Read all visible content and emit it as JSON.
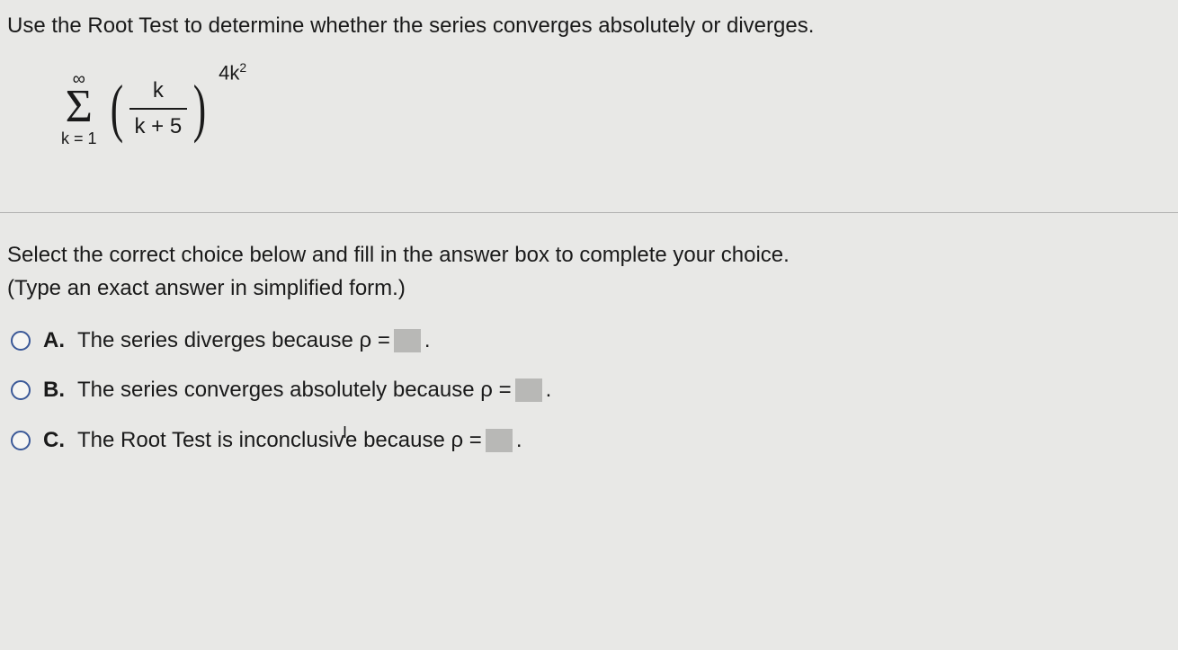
{
  "question": {
    "prompt": "Use the Root Test to determine whether the series converges absolutely or diverges.",
    "formula": {
      "sigma_upper": "∞",
      "sigma_lower": "k = 1",
      "fraction_numerator": "k",
      "fraction_denominator": "k + 5",
      "exponent_base": "4k",
      "exponent_power": "2"
    }
  },
  "instruction": {
    "line1": "Select the correct choice below and fill in the answer box to complete your choice.",
    "line2": "(Type an exact answer in simplified form.)"
  },
  "choices": {
    "a": {
      "letter": "A.",
      "text_before": "The series diverges because ρ =",
      "text_after": "."
    },
    "b": {
      "letter": "B.",
      "text_before": "The series converges absolutely because ρ =",
      "text_after": "."
    },
    "c": {
      "letter": "C.",
      "text_before_1": "The Root Test is inconclusiv",
      "text_before_2": "because ρ =",
      "text_after": "."
    }
  },
  "colors": {
    "background": "#e8e8e6",
    "text": "#1a1a1a",
    "radio_border": "#3b5998",
    "answer_box": "#b8b8b6",
    "divider": "#b0b0b0"
  },
  "typography": {
    "body_fontsize": 24,
    "sigma_fontsize": 52,
    "paren_fontsize": 72,
    "exponent_fontsize": 22
  }
}
